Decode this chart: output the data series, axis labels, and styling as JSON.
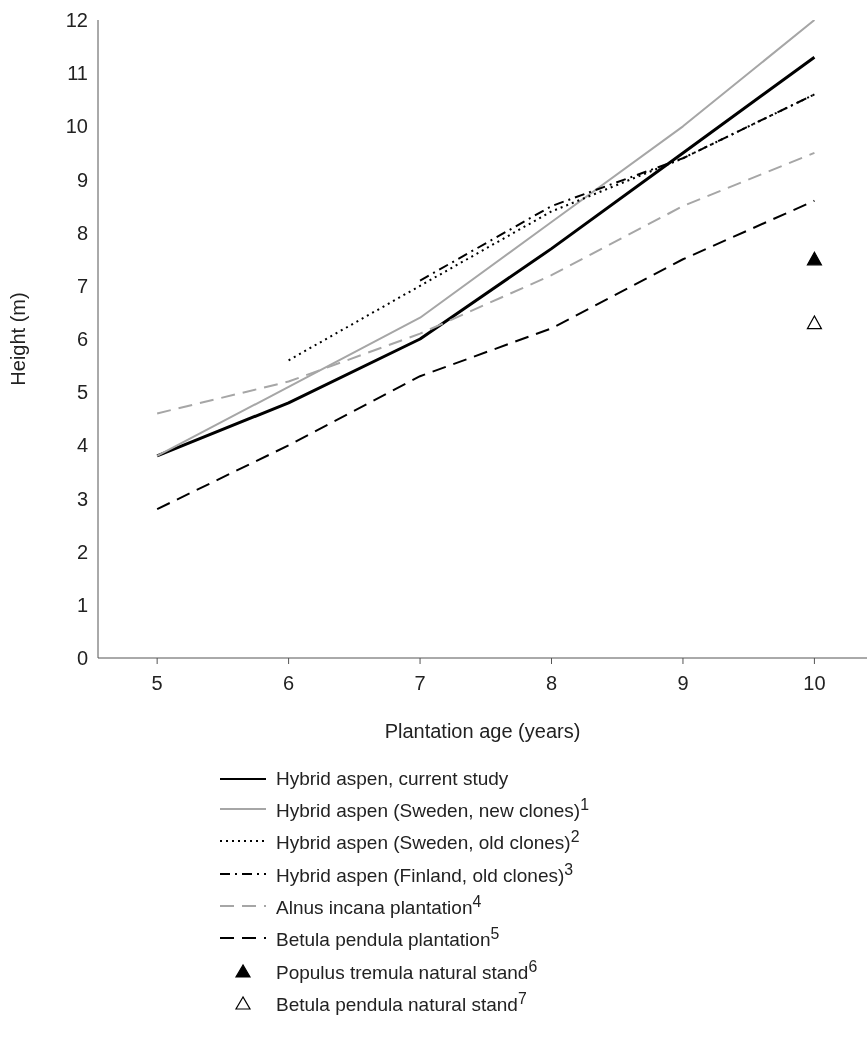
{
  "chart_data": {
    "type": "line",
    "xlabel": "Plantation age (years)",
    "ylabel": "Height (m)",
    "xlim": [
      4.55,
      10.4
    ],
    "xticks": [
      5,
      6,
      7,
      8,
      9,
      10
    ],
    "ylim": [
      0,
      12
    ],
    "yticks": [
      0,
      1,
      2,
      3,
      4,
      5,
      6,
      7,
      8,
      9,
      10,
      11,
      12
    ],
    "grid": false,
    "legend": "bottom",
    "marker": "none",
    "series": [
      {
        "name": "Hybrid aspen, current study",
        "color": "#000000",
        "line_style": "solid",
        "x": [
          5,
          6,
          7,
          8,
          9,
          10
        ],
        "values": [
          3.8,
          4.8,
          6.0,
          7.7,
          9.5,
          11.3
        ]
      },
      {
        "name": "Hybrid aspen (Sweden, new clones)$^{1}$",
        "color": "#a6a6a6",
        "line_style": "solid",
        "x": [
          5,
          6,
          7,
          8,
          9,
          10
        ],
        "values": [
          3.8,
          5.1,
          6.4,
          8.2,
          10.0,
          12.0
        ]
      },
      {
        "name": "Hybrid aspen (Sweden, old clones)$^{2}$",
        "color": "#000000",
        "line_style": "dotted",
        "x": [
          6,
          7,
          8,
          9,
          10
        ],
        "values": [
          5.6,
          7.0,
          8.4,
          9.4,
          10.6
        ]
      },
      {
        "name": "Hybrid aspen (Finland, old clones)$^{3}$",
        "color": "#000000",
        "line_style": "dashdot",
        "x": [
          7,
          8,
          9,
          10
        ],
        "values": [
          7.1,
          8.5,
          9.4,
          10.6
        ]
      },
      {
        "name": "Alnus incana plantation$^{4}$",
        "color": "#a6a6a6",
        "line_style": "dashed",
        "x": [
          5,
          6,
          7,
          8,
          9,
          10
        ],
        "values": [
          4.6,
          5.2,
          6.1,
          7.2,
          8.5,
          9.5
        ]
      },
      {
        "name": "Betula pendula plantation$^{5}$",
        "color": "#000000",
        "line_style": "dashed",
        "x": [
          5,
          6,
          7,
          8,
          9,
          10
        ],
        "values": [
          2.8,
          4.0,
          5.3,
          6.2,
          7.5,
          8.6
        ]
      },
      {
        "name": "Populus tremula natural stand$^{6}$",
        "type": "scatter",
        "marker": "triangle",
        "color": "#000000",
        "x": [
          10
        ],
        "values": [
          7.5
        ]
      },
      {
        "name": "Betula pendula natural stand$^{7}$",
        "type": "scatter",
        "marker": "triangle",
        "color": "#ffffff",
        "x": [
          10
        ],
        "values": [
          6.3
        ]
      }
    ]
  }
}
